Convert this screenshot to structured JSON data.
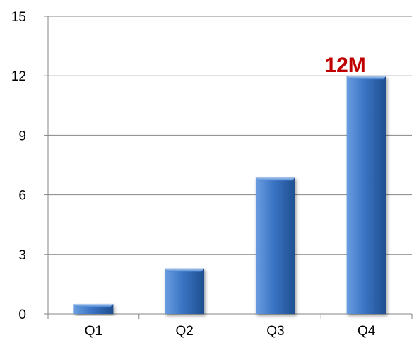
{
  "chart_data": {
    "type": "bar",
    "categories": [
      "Q1",
      "Q2",
      "Q3",
      "Q4"
    ],
    "values": [
      0.5,
      2.3,
      6.9,
      12
    ],
    "ylim": [
      0,
      15
    ],
    "yticks": [
      "0",
      "3",
      "6",
      "9",
      "12",
      "15"
    ],
    "grid": true,
    "legend": "none",
    "annotations": [
      {
        "category": "Q4",
        "text": "12M",
        "color": "#c00000"
      }
    ],
    "colors": {
      "bar_light": "#6a9ee0",
      "bar_mid": "#3a74c4",
      "bar_dark": "#1f4f8f",
      "grid": "#868686",
      "axis": "#868686"
    }
  }
}
